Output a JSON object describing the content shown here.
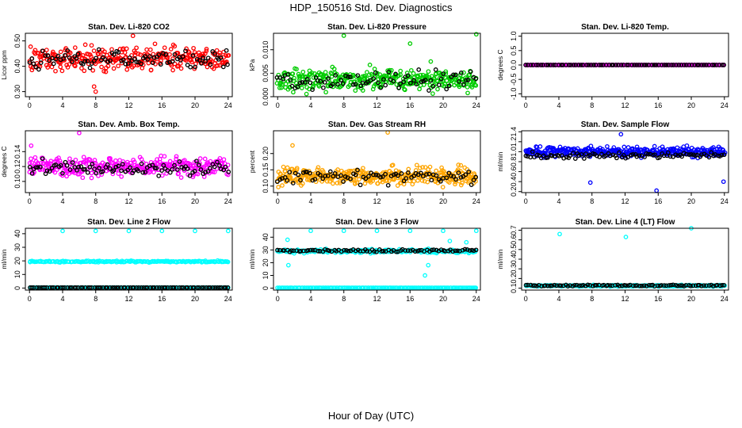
{
  "title": "HDP_150516  Std. Dev. Diagnostics",
  "xlabel": "Hour of Day (UTC)",
  "chart_data": [
    {
      "type": "scatter",
      "title": "Stan. Dev. Li-820 CO2",
      "ylabel": "Licor ppm",
      "xlim": [
        -0.5,
        24.5
      ],
      "ylim": [
        0.28,
        0.53
      ],
      "xticks": [
        0,
        4,
        8,
        12,
        16,
        20,
        24
      ],
      "xtick_labels": [
        "0",
        "4",
        "8",
        "12",
        "16",
        "20",
        "24"
      ],
      "yticks": [
        0.3,
        0.4,
        0.5
      ],
      "ytick_labels": [
        "0.30",
        "0.40",
        "0.50"
      ],
      "series": [
        {
          "name": "scatter",
          "color": "#ff0000",
          "center": 0.43,
          "spread": 0.045,
          "min": 0.3,
          "max": 0.52,
          "count": 300,
          "outliers": [
            [
              8,
              0.3
            ],
            [
              12.5,
              0.52
            ],
            [
              7.8,
              0.32
            ]
          ]
        },
        {
          "name": "hourly",
          "color": "#000000",
          "center": 0.43,
          "spread": 0.035,
          "min": 0.35,
          "max": 0.51,
          "count": 90,
          "outliers": []
        }
      ]
    },
    {
      "type": "scatter",
      "title": "Stan. Dev. Li-820 Pressure",
      "ylabel": "kPa",
      "xlim": [
        -0.5,
        24.5
      ],
      "ylim": [
        0,
        0.0135
      ],
      "xticks": [
        0,
        4,
        8,
        12,
        16,
        20,
        24
      ],
      "xtick_labels": [
        "0",
        "4",
        "8",
        "12",
        "16",
        "20",
        "24"
      ],
      "yticks": [
        0,
        0.005,
        0.01
      ],
      "ytick_labels": [
        "0.000",
        "0.005",
        "0.010"
      ],
      "series": [
        {
          "name": "scatter",
          "color": "#00cc00",
          "center": 0.0035,
          "spread": 0.0022,
          "min": 0.0,
          "max": 0.0068,
          "count": 340,
          "outliers": [
            [
              8,
              0.013
            ],
            [
              16,
              0.0113
            ],
            [
              24,
              0.0133
            ],
            [
              18.5,
              0.0075
            ]
          ]
        },
        {
          "name": "hourly",
          "color": "#000000",
          "center": 0.0035,
          "spread": 0.0018,
          "min": 0.0,
          "max": 0.0062,
          "count": 80,
          "outliers": []
        }
      ]
    },
    {
      "type": "scatter",
      "title": "Stan. Dev. Li-820 Temp.",
      "ylabel": "degrees C",
      "xlim": [
        -0.5,
        24.5
      ],
      "ylim": [
        -1.1,
        1.1
      ],
      "xticks": [
        0,
        4,
        8,
        12,
        16,
        20,
        24
      ],
      "xtick_labels": [
        "0",
        "4",
        "8",
        "12",
        "16",
        "20",
        "24"
      ],
      "yticks": [
        -1.0,
        -0.5,
        0.0,
        0.5,
        1.0
      ],
      "ytick_labels": [
        "-1.0",
        "-0.5",
        "0.0",
        "0.5",
        "1.0"
      ],
      "series": [
        {
          "name": "scatter",
          "color": "#ff00ff",
          "center": 0.0,
          "spread": 0.0,
          "min": 0.0,
          "max": 0.0,
          "count": 200,
          "outliers": []
        },
        {
          "name": "hourly",
          "color": "#000000",
          "center": 0.0,
          "spread": 0.0,
          "min": 0.0,
          "max": 0.0,
          "count": 80,
          "outliers": []
        }
      ]
    },
    {
      "type": "scatter",
      "title": "Stan. Dev. Amb. Box Temp.",
      "ylabel": "degrees C",
      "xlim": [
        -0.5,
        24.5
      ],
      "ylim": [
        0.085,
        0.168
      ],
      "xticks": [
        0,
        4,
        8,
        12,
        16,
        20,
        24
      ],
      "xtick_labels": [
        "0",
        "4",
        "8",
        "12",
        "16",
        "20",
        "24"
      ],
      "yticks": [
        0.1,
        0.12,
        0.14
      ],
      "ytick_labels": [
        "0.10",
        "0.12",
        "0.14"
      ],
      "series": [
        {
          "name": "scatter",
          "color": "#ff00ff",
          "center": 0.12,
          "spread": 0.012,
          "min": 0.092,
          "max": 0.16,
          "count": 320,
          "outliers": [
            [
              6,
              0.165
            ],
            [
              0.2,
              0.148
            ]
          ]
        },
        {
          "name": "hourly",
          "color": "#000000",
          "center": 0.118,
          "spread": 0.009,
          "min": 0.098,
          "max": 0.14,
          "count": 90,
          "outliers": []
        }
      ]
    },
    {
      "type": "scatter",
      "title": "Stan. Dev. Gas Stream RH",
      "ylabel": "percent",
      "xlim": [
        -0.5,
        24.5
      ],
      "ylim": [
        0.08,
        0.27
      ],
      "xticks": [
        0,
        4,
        8,
        12,
        16,
        20,
        24
      ],
      "xtick_labels": [
        "0",
        "4",
        "8",
        "12",
        "16",
        "20",
        "24"
      ],
      "yticks": [
        0.1,
        0.15,
        0.2
      ],
      "ytick_labels": [
        "0.10",
        "0.15",
        "0.20"
      ],
      "series": [
        {
          "name": "scatter",
          "color": "#ffa500",
          "center": 0.13,
          "spread": 0.025,
          "min": 0.085,
          "max": 0.22,
          "count": 380,
          "outliers": [
            [
              13.3,
              0.265
            ],
            [
              1.8,
              0.225
            ]
          ]
        },
        {
          "name": "hourly",
          "color": "#000000",
          "center": 0.13,
          "spread": 0.02,
          "min": 0.09,
          "max": 0.19,
          "count": 80,
          "outliers": []
        }
      ]
    },
    {
      "type": "scatter",
      "title": "Stan. Dev. Sample Flow",
      "ylabel": "ml/min",
      "xlim": [
        -0.5,
        24.5
      ],
      "ylim": [
        0.18,
        1.42
      ],
      "xticks": [
        0,
        4,
        8,
        12,
        16,
        20,
        24
      ],
      "xtick_labels": [
        "0",
        "4",
        "8",
        "12",
        "16",
        "20",
        "24"
      ],
      "yticks": [
        0.2,
        0.4,
        0.6,
        0.8,
        1.0,
        1.2,
        1.4
      ],
      "ytick_labels": [
        "0.2",
        "0.4",
        "0.6",
        "0.8",
        "1.0",
        "1.2",
        "1.4"
      ],
      "series": [
        {
          "name": "scatter",
          "color": "#0000ff",
          "center": 1.0,
          "spread": 0.1,
          "min": 0.6,
          "max": 1.3,
          "count": 360,
          "outliers": [
            [
              7.8,
              0.38
            ],
            [
              15.8,
              0.22
            ],
            [
              23.9,
              0.4
            ],
            [
              11.5,
              1.35
            ]
          ]
        },
        {
          "name": "hourly",
          "color": "#000000",
          "center": 0.92,
          "spread": 0.06,
          "min": 0.78,
          "max": 1.05,
          "count": 90,
          "outliers": []
        }
      ]
    },
    {
      "type": "scatter",
      "title": "Stan. Dev. Line 2 Flow",
      "ylabel": "ml/min",
      "xlim": [
        -0.5,
        24.5
      ],
      "ylim": [
        -1.5,
        44
      ],
      "xticks": [
        0,
        4,
        8,
        12,
        16,
        20,
        24
      ],
      "xtick_labels": [
        "0",
        "4",
        "8",
        "12",
        "16",
        "20",
        "24"
      ],
      "yticks": [
        0,
        10,
        20,
        30,
        40
      ],
      "ytick_labels": [
        "0",
        "10",
        "20",
        "30",
        "40"
      ],
      "series": [
        {
          "name": "scatter-upper",
          "color": "#00ffff",
          "center": 19.5,
          "spread": 0.5,
          "min": 18.5,
          "max": 21,
          "count": 180,
          "outliers": [
            [
              4,
              42
            ],
            [
              8,
              42
            ],
            [
              12,
              42
            ],
            [
              16,
              42
            ],
            [
              20,
              42
            ],
            [
              24,
              42
            ]
          ]
        },
        {
          "name": "scatter-lower",
          "color": "#00ffff",
          "center": 0.3,
          "spread": 0.0,
          "min": 0.3,
          "max": 0.3,
          "count": 160,
          "outliers": []
        },
        {
          "name": "hourly",
          "color": "#000000",
          "center": 0.3,
          "spread": 0.0,
          "min": 0.3,
          "max": 0.3,
          "count": 90,
          "outliers": []
        }
      ]
    },
    {
      "type": "scatter",
      "title": "Stan. Dev. Line 3 Flow",
      "ylabel": "ml/min",
      "xlim": [
        -0.5,
        24.5
      ],
      "ylim": [
        -1.5,
        47
      ],
      "xticks": [
        0,
        4,
        8,
        12,
        16,
        20,
        24
      ],
      "xtick_labels": [
        "0",
        "4",
        "8",
        "12",
        "16",
        "20",
        "24"
      ],
      "yticks": [
        0,
        10,
        20,
        30,
        40
      ],
      "ytick_labels": [
        "0",
        "10",
        "20",
        "30",
        "40"
      ],
      "series": [
        {
          "name": "scatter-upper",
          "color": "#00ffff",
          "center": 29,
          "spread": 1.5,
          "min": 24,
          "max": 36,
          "count": 200,
          "outliers": [
            [
              1.2,
              38
            ],
            [
              1.3,
              18
            ],
            [
              4,
              45
            ],
            [
              8,
              45
            ],
            [
              12,
              45
            ],
            [
              16,
              45
            ],
            [
              20,
              45
            ],
            [
              24,
              45
            ],
            [
              17.8,
              10
            ],
            [
              18.2,
              18
            ],
            [
              20.8,
              37
            ],
            [
              22.8,
              36
            ]
          ]
        },
        {
          "name": "scatter-lower",
          "color": "#00ffff",
          "center": 0.3,
          "spread": 0.0,
          "min": 0.3,
          "max": 0.3,
          "count": 160,
          "outliers": []
        },
        {
          "name": "hourly",
          "color": "#000000",
          "center": 29.5,
          "spread": 1.0,
          "min": 25,
          "max": 33,
          "count": 85,
          "outliers": []
        }
      ]
    },
    {
      "type": "scatter",
      "title": "Stan. Dev. Line 4 (LT) Flow",
      "ylabel": "ml/min",
      "xlim": [
        -0.5,
        24.5
      ],
      "ylim": [
        0.08,
        0.72
      ],
      "xticks": [
        0,
        4,
        8,
        12,
        16,
        20,
        24
      ],
      "xtick_labels": [
        "0",
        "4",
        "8",
        "12",
        "16",
        "20",
        "24"
      ],
      "yticks": [
        0.1,
        0.2,
        0.3,
        0.4,
        0.5,
        0.6,
        0.7
      ],
      "ytick_labels": [
        "0.1",
        "0.2",
        "0.3",
        "0.4",
        "0.5",
        "0.6",
        "0.7"
      ],
      "series": [
        {
          "name": "scatter",
          "color": "#00ffff",
          "center": 0.125,
          "spread": 0.008,
          "min": 0.11,
          "max": 0.145,
          "count": 220,
          "outliers": [
            [
              4.1,
              0.66
            ],
            [
              12.1,
              0.63
            ],
            [
              20,
              0.72
            ]
          ]
        },
        {
          "name": "hourly",
          "color": "#000000",
          "center": 0.128,
          "spread": 0.006,
          "min": 0.115,
          "max": 0.145,
          "count": 90,
          "outliers": []
        }
      ]
    }
  ]
}
